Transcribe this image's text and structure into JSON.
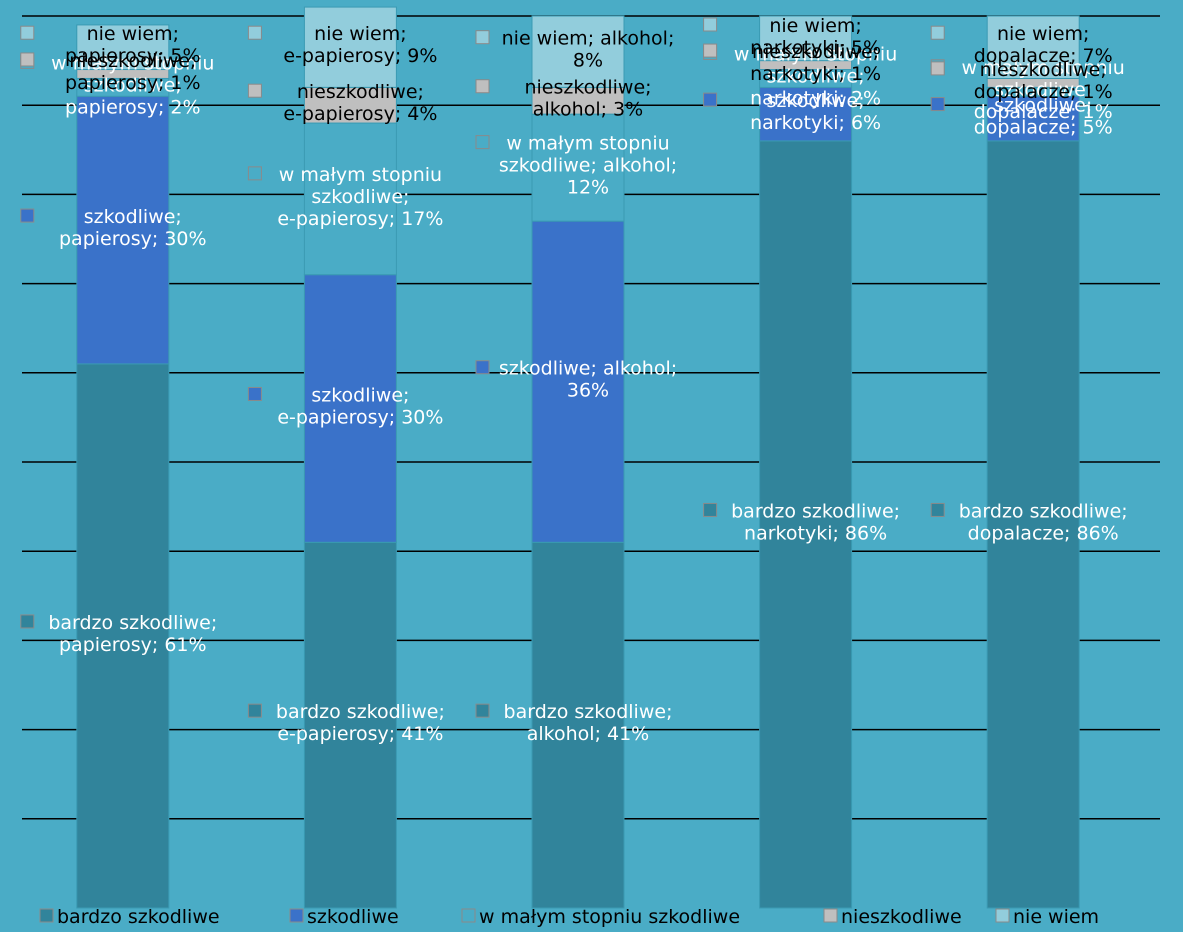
{
  "chart_data": {
    "type": "bar",
    "stacked": true,
    "categories": [
      "papierosy",
      "e-papierosy",
      "alkohol",
      "narkotyki",
      "dopalacze"
    ],
    "series": [
      {
        "name": "bardzo szkodliwe",
        "values": [
          61,
          41,
          41,
          86,
          86
        ],
        "color": "#31849b"
      },
      {
        "name": "szkodliwe",
        "values": [
          30,
          30,
          36,
          6,
          5
        ],
        "color": "#3a72c9"
      },
      {
        "name": "w małym stopniu szkodliwe",
        "values": [
          2,
          17,
          12,
          2,
          1
        ],
        "color": "#4aacc6"
      },
      {
        "name": "nieszkodliwe",
        "values": [
          1,
          4,
          3,
          1,
          1
        ],
        "color": "#bfbfbf"
      },
      {
        "name": "nie wiem",
        "values": [
          5,
          9,
          8,
          5,
          7
        ],
        "color": "#92cddc"
      }
    ],
    "data_labels": [
      [
        "bardzo szkodliwe; papierosy; 61%",
        "bardzo szkodliwe; e-papierosy; 41%",
        "bardzo szkodliwe; alkohol; 41%",
        "bardzo szkodliwe; narkotyki; 86%",
        "bardzo szkodliwe; dopalacze; 86%"
      ],
      [
        "szkodliwe; papierosy; 30%",
        "szkodliwe; e-papierosy; 30%",
        "szkodliwe; alkohol; 36%",
        "szkodliwe; narkotyki; 6%",
        "szkodliwe; dopalacze; 5%"
      ],
      [
        "w małym stopniu szkodliwe; papierosy; 2%",
        "w małym stopniu szkodliwe; e-papierosy; 17%",
        "w małym stopniu szkodliwe; alkohol; 12%",
        "w małym stopniu szkodliwe; narkotyki; 2%",
        "w małym stopniu szkodliwe; dopalacze; 1%"
      ],
      [
        "nieszkodliwe; papierosy; 1%",
        "nieszkodliwe; e-papierosy; 4%",
        "nieszkodliwe; alkohol; 3%",
        "nieszkodliwe; narkotyki; 1%",
        "nieszkodliwe; dopalacze; 1%"
      ],
      [
        "nie wiem; papierosy; 5%",
        "nie wiem; e-papierosy; 9%",
        "nie wiem; alkohol; 8%",
        "nie wiem; narkotyki; 5%",
        "nie wiem; dopalacze; 7%"
      ]
    ],
    "ylim": [
      0,
      100
    ],
    "grid": true,
    "legend": "bottom"
  }
}
